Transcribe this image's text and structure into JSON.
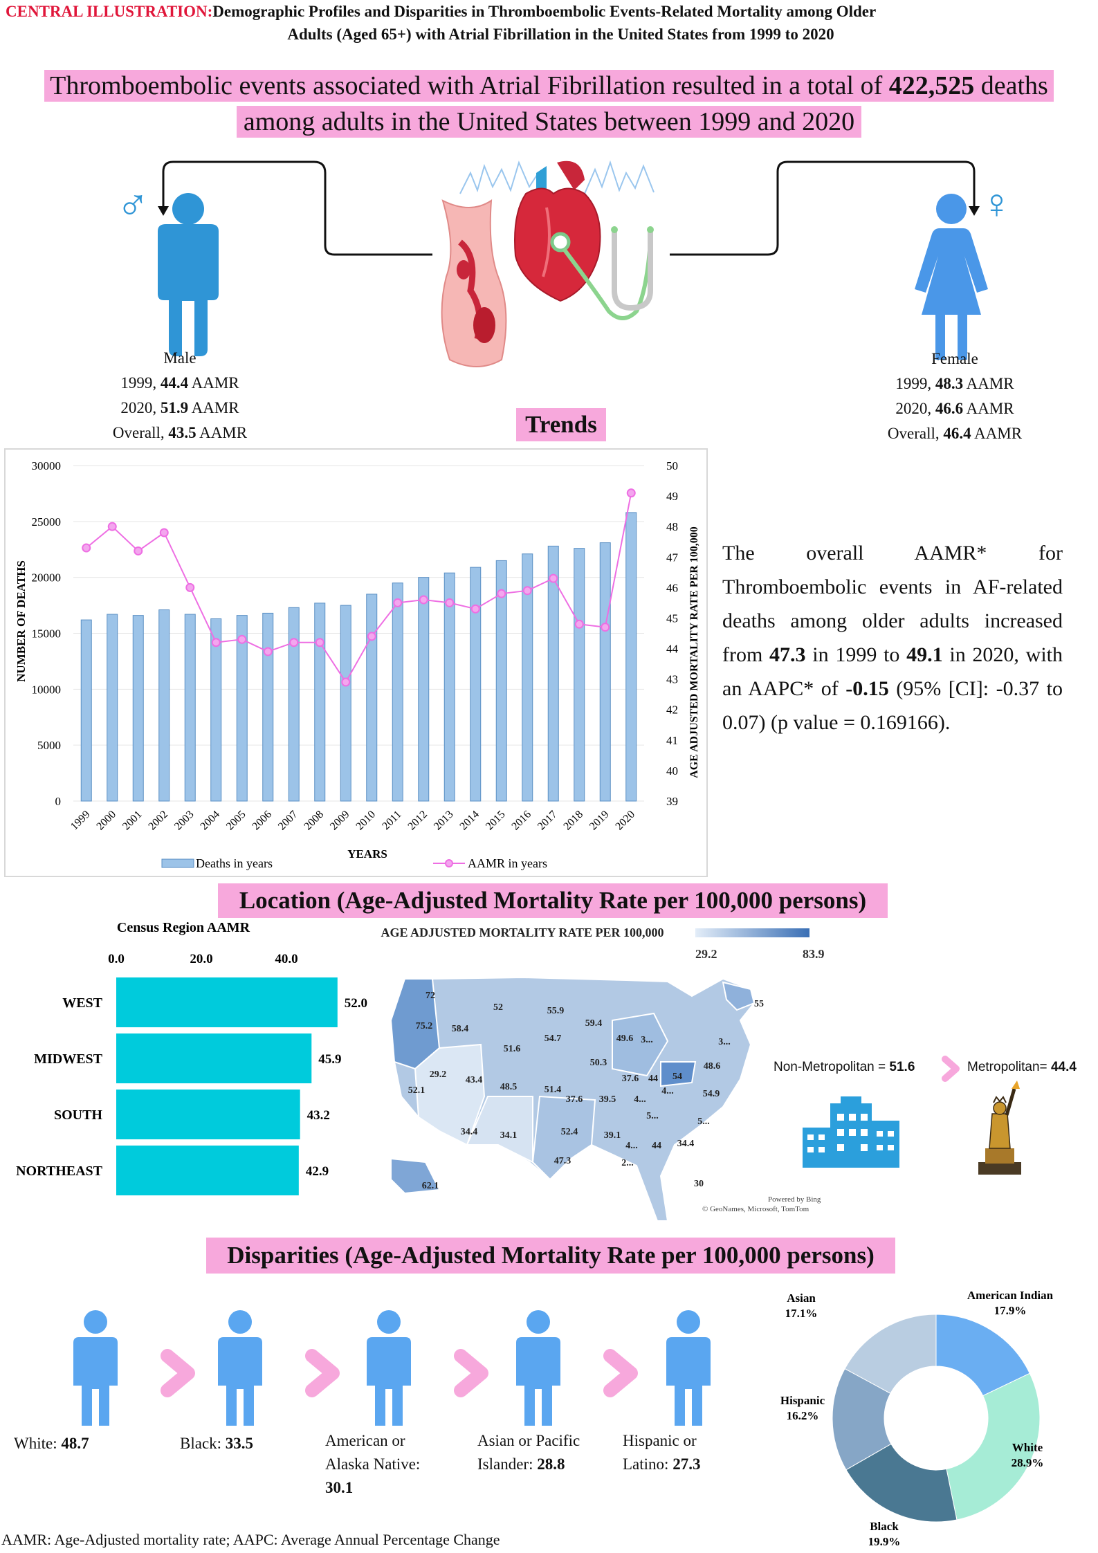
{
  "header": {
    "prefix": "CENTRAL ILLUSTRATION:",
    "title_line1": "Demographic Profiles and Disparities in Thromboembolic Events-Related Mortality among Older",
    "title_line2": "Adults (Aged 65+) with Atrial Fibrillation in the United States from 1999 to 2020"
  },
  "headline": {
    "part1": "Thromboembolic events associated with Atrial Fibrillation resulted in a total of ",
    "deaths": "422,525",
    "part2": " deaths",
    "line2": "among adults in the United States between 1999 and 2020"
  },
  "male": {
    "symbol": "♂",
    "label": "Male",
    "r1": "1999, ",
    "v1": "44.4",
    "u1": " AAMR",
    "r2": "2020, ",
    "v2": "51.9",
    "u2": " AAMR",
    "r3": "Overall, ",
    "v3": "43.5",
    "u3": " AAMR"
  },
  "female": {
    "symbol": "♀",
    "label": "Female",
    "r1": "1999, ",
    "v1": "48.3",
    "u1": " AAMR",
    "r2": "2020, ",
    "v2": "46.6",
    "u2": " AAMR",
    "r3": "Overall, ",
    "v3": "46.4",
    "u3": " AAMR"
  },
  "sections": {
    "trends": "Trends",
    "location": "Location (Age-Adjusted Mortality Rate per 100,000 persons)",
    "disparities": "Disparities (Age-Adjusted Mortality Rate per 100,000 persons)"
  },
  "trend_text": {
    "t1": "The overall AAMR* for Thromboembolic events in AF-related deaths among older adults increased from ",
    "v1": "47.3",
    "t2": " in 1999 to ",
    "v2": "49.1",
    "t3": " in 2020, with an AAPC* of ",
    "v3": "-0.15",
    "t4": " (95% [CI]: -0.37 to 0.07) (p value = 0.169166)."
  },
  "chart_data": [
    {
      "type": "bar",
      "title": "",
      "xlabel": "YEARS",
      "ylabel": "NUMBER OF DEATHS",
      "y2label": "AGE ADJUSTED MORTALITY RATE PER 100,000",
      "ylim": [
        0,
        30000
      ],
      "y2lim": [
        39,
        50
      ],
      "yticks": [
        "0",
        "5000",
        "10000",
        "15000",
        "20000",
        "25000",
        "30000"
      ],
      "y2ticks": [
        "39",
        "40",
        "41",
        "42",
        "43",
        "44",
        "45",
        "46",
        "47",
        "48",
        "49",
        "50"
      ],
      "categories": [
        "1999",
        "2000",
        "2001",
        "2002",
        "2003",
        "2004",
        "2005",
        "2006",
        "2007",
        "2008",
        "2009",
        "2010",
        "2011",
        "2012",
        "2013",
        "2014",
        "2015",
        "2016",
        "2017",
        "2018",
        "2019",
        "2020"
      ],
      "series": [
        {
          "name": "Deaths in years",
          "type": "bar",
          "axis": "left",
          "values": [
            16200,
            16700,
            16600,
            17100,
            16700,
            16300,
            16600,
            16800,
            17300,
            17700,
            17500,
            18500,
            19500,
            20000,
            20400,
            20900,
            21500,
            22100,
            22800,
            22600,
            23100,
            25800
          ]
        },
        {
          "name": "AAMR in years",
          "type": "line",
          "axis": "right",
          "values": [
            47.3,
            48.0,
            47.2,
            47.8,
            46.0,
            44.2,
            44.3,
            43.9,
            44.2,
            44.2,
            42.9,
            44.4,
            45.5,
            45.6,
            45.5,
            45.3,
            45.8,
            45.9,
            46.3,
            44.8,
            44.7,
            49.1
          ]
        }
      ],
      "legend": "bottom"
    },
    {
      "type": "bar",
      "orientation": "horizontal",
      "title": "Census Region AAMR",
      "xticks": [
        "0.0",
        "20.0",
        "40.0"
      ],
      "xlim": [
        0,
        60
      ],
      "categories": [
        "WEST",
        "MIDWEST",
        "SOUTH",
        "NORTHEAST"
      ],
      "values": [
        52.0,
        45.9,
        43.2,
        42.9
      ],
      "value_labels": [
        "52.0",
        "45.9",
        "43.2",
        "42.9"
      ]
    },
    {
      "type": "pie",
      "title": "",
      "categories": [
        "American Indian",
        "White",
        "Black",
        "Hispanic",
        "Asian"
      ],
      "values": [
        17.9,
        28.9,
        19.9,
        16.2,
        17.1
      ],
      "labels": [
        "17.9%",
        "28.9%",
        "19.9%",
        "16.2%",
        "17.1%"
      ],
      "colors": [
        "#6aaef2",
        "#a6ecd6",
        "#4a7892",
        "#86a6c6",
        "#b9cde1"
      ]
    }
  ],
  "trend_legend": {
    "bars": "Deaths in years",
    "line": "AAMR in years",
    "xlabel": "YEARS"
  },
  "map": {
    "title": "AGE ADJUSTED MORTALITY RATE PER 100,000",
    "legend_min": "29.2",
    "legend_max": "83.9",
    "powered": "Powered by Bing",
    "credit": "© GeoNames, Microsoft, TomTom",
    "labels": [
      "72",
      "75.2",
      "58.4",
      "52",
      "55.9",
      "59.4",
      "49.6",
      "3...",
      "55",
      "3...",
      "48.6",
      "51.6",
      "54.7",
      "50.3",
      "54",
      "37.6",
      "44",
      "29.2",
      "43.4",
      "48.5",
      "51.4",
      "37.6",
      "39.5",
      "4...",
      "4...",
      "54.9",
      "52.1",
      "5...",
      "5...",
      "34.4",
      "34.1",
      "52.4",
      "39.1",
      "4...",
      "44",
      "34.4",
      "47.3",
      "2...",
      "30",
      "62.1"
    ]
  },
  "metro": {
    "non_label": "Non-Metropolitan = ",
    "non_val": "51.6",
    "met_label": "Metropolitan= ",
    "met_val": "44.4"
  },
  "disparities": [
    {
      "l1": "White: ",
      "v": "48.7",
      "l2": ""
    },
    {
      "l1": "Black: ",
      "v": "33.5",
      "l2": ""
    },
    {
      "l1": "American or",
      "l2": "Alaska Native:",
      "v": "30.1"
    },
    {
      "l1": "Asian or Pacific",
      "l2": "Islander: ",
      "v": "28.8"
    },
    {
      "l1": "Hispanic or",
      "l2": "Latino: ",
      "v": "27.3"
    }
  ],
  "pie_labels": [
    {
      "name": "American Indian",
      "pct": "17.9%"
    },
    {
      "name": "White",
      "pct": "28.9%"
    },
    {
      "name": "Black",
      "pct": "19.9%"
    },
    {
      "name": "Hispanic",
      "pct": "16.2%"
    },
    {
      "name": "Asian",
      "pct": "17.1%"
    }
  ],
  "footnote": "AAMR: Age-Adjusted mortality rate; AAPC: Average Annual Percentage Change"
}
